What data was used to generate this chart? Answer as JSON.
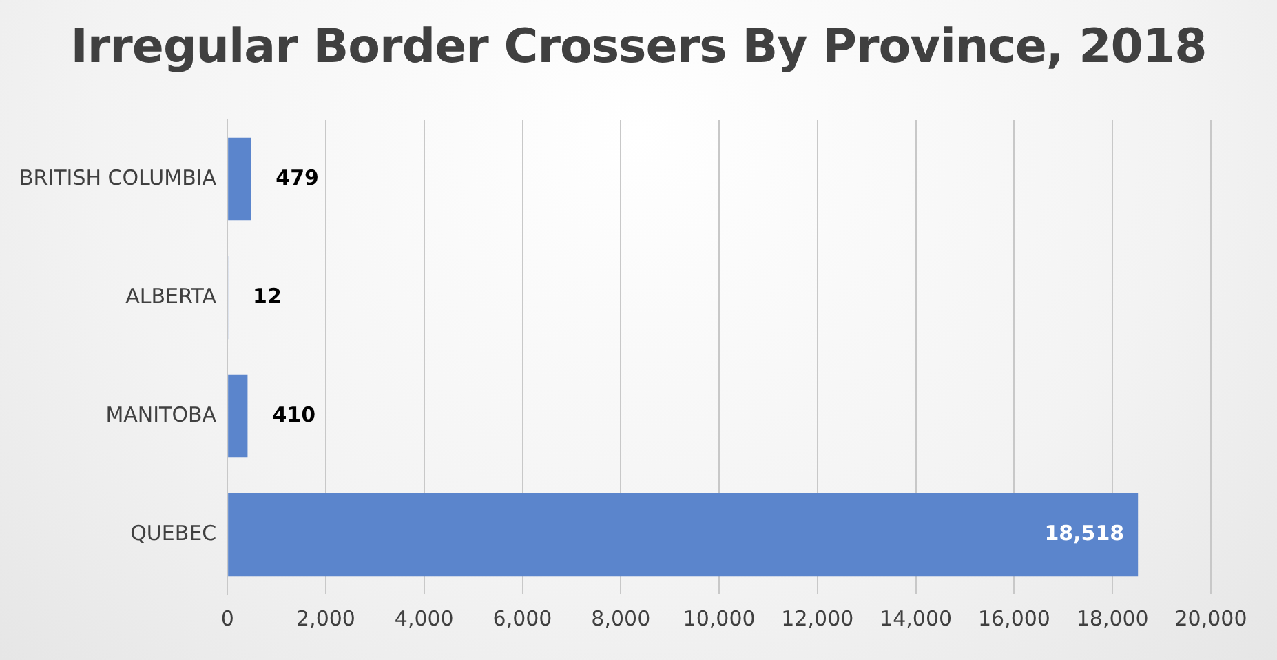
{
  "chart_data": {
    "type": "bar",
    "orientation": "horizontal",
    "title": "Irregular Border Crossers By Province, 2018",
    "categories": [
      "BRITISH COLUMBIA",
      "ALBERTA",
      "MANITOBA",
      "QUEBEC"
    ],
    "values": [
      479,
      12,
      410,
      18518
    ],
    "value_labels": [
      "479",
      "12",
      "410",
      "18,518"
    ],
    "color": "#5b85cc",
    "xlim": [
      0,
      20000
    ],
    "xticks": [
      0,
      {
        "value": 2000,
        "label": "2,000"
      },
      {
        "value": 4000,
        "label": "4,000"
      },
      {
        "value": 6000,
        "label": "6,000"
      },
      {
        "value": 8000,
        "label": "8,000"
      },
      {
        "value": 10000,
        "label": "10,000"
      },
      {
        "value": 12000,
        "label": "12,000"
      },
      {
        "value": 14000,
        "label": "14,000"
      },
      {
        "value": 16000,
        "label": "16,000"
      },
      {
        "value": 18000,
        "label": "18,000"
      },
      {
        "value": 20000,
        "label": "20,000"
      }
    ],
    "grid": "x",
    "legend": false
  }
}
